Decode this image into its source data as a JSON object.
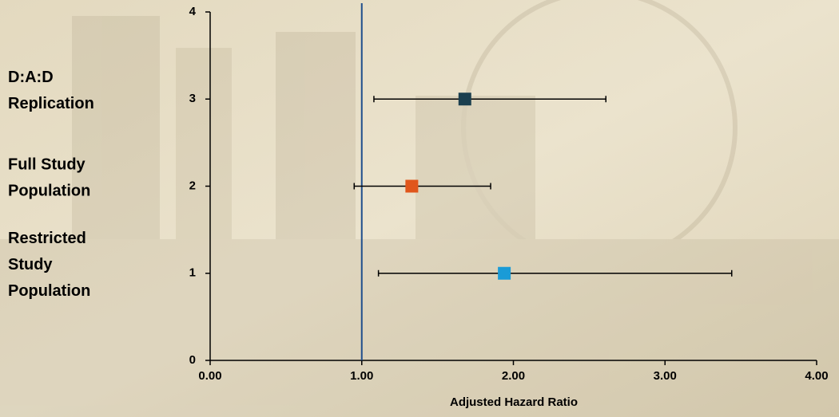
{
  "chart_data": {
    "type": "forest",
    "x_label": "Adjusted Hazard Ratio",
    "xlim": [
      0,
      4
    ],
    "xticks": [
      {
        "value": 0,
        "label": "0.00"
      },
      {
        "value": 1,
        "label": "1.00"
      },
      {
        "value": 2,
        "label": "2.00"
      },
      {
        "value": 3,
        "label": "3.00"
      },
      {
        "value": 4,
        "label": "4.00"
      }
    ],
    "ylim": [
      0,
      4
    ],
    "yticks": [
      0,
      1,
      2,
      3,
      4
    ],
    "reference_line": 1,
    "reference_color": "#1f4e8c",
    "series": [
      {
        "name_lines": [
          "D:A:D",
          "Replication"
        ],
        "color": "#1b3f4f",
        "y": 3,
        "estimate": 1.68,
        "lower": 1.08,
        "upper": 2.61
      },
      {
        "name_lines": [
          "Full Study",
          "Population"
        ],
        "color": "#e0561b",
        "y": 2,
        "estimate": 1.33,
        "lower": 0.95,
        "upper": 1.85
      },
      {
        "name_lines": [
          "Restricted",
          "Study",
          "Population"
        ],
        "color": "#1a9bd7",
        "y": 1,
        "estimate": 1.94,
        "lower": 1.11,
        "upper": 3.44
      }
    ]
  }
}
